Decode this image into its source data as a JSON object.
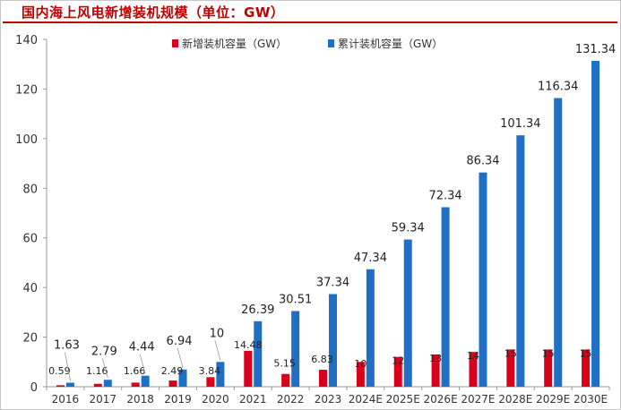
{
  "header": {
    "title": "国内海上风电新增装机规模（单位：GW）"
  },
  "colors": {
    "new": "#d9001b",
    "cumulative": "#1f6fc5",
    "title": "#c00000",
    "axis": "#9a9a9a"
  },
  "chart_data": {
    "type": "bar",
    "title": "国内海上风电新增装机规模（单位：GW）",
    "xlabel": "",
    "ylabel": "",
    "ylim": [
      0,
      140
    ],
    "yticks": [
      0,
      20,
      40,
      60,
      80,
      100,
      120,
      140
    ],
    "grid": false,
    "legend_position": "top-center",
    "categories": [
      "2016",
      "2017",
      "2018",
      "2019",
      "2020",
      "2021",
      "2022",
      "2023",
      "2024E",
      "2025E",
      "2026E",
      "2027E",
      "2028E",
      "2029E",
      "2030E"
    ],
    "series": [
      {
        "name": "新增装机容量（GW）",
        "values": [
          0.59,
          1.16,
          1.66,
          2.49,
          3.84,
          14.48,
          5.15,
          6.83,
          10,
          12,
          13,
          14,
          15,
          15,
          15
        ],
        "labels": [
          "0.59",
          "1.16",
          "1.66",
          "2.49",
          "3.84",
          "14.48",
          "5.15",
          "6.83",
          "10",
          "12",
          "13",
          "14",
          "15",
          "15",
          "15"
        ]
      },
      {
        "name": "累计装机容量（GW）",
        "values": [
          1.63,
          2.79,
          4.44,
          6.94,
          10,
          26.39,
          30.51,
          37.34,
          47.34,
          59.34,
          72.34,
          86.34,
          101.34,
          116.34,
          131.34
        ],
        "labels": [
          "1.63",
          "2.79",
          "4.44",
          "6.94",
          "10",
          "26.39",
          "30.51",
          "37.34",
          "47.34",
          "59.34",
          "72.34",
          "86.34",
          "101.34",
          "116.34",
          "131.34"
        ]
      }
    ]
  }
}
